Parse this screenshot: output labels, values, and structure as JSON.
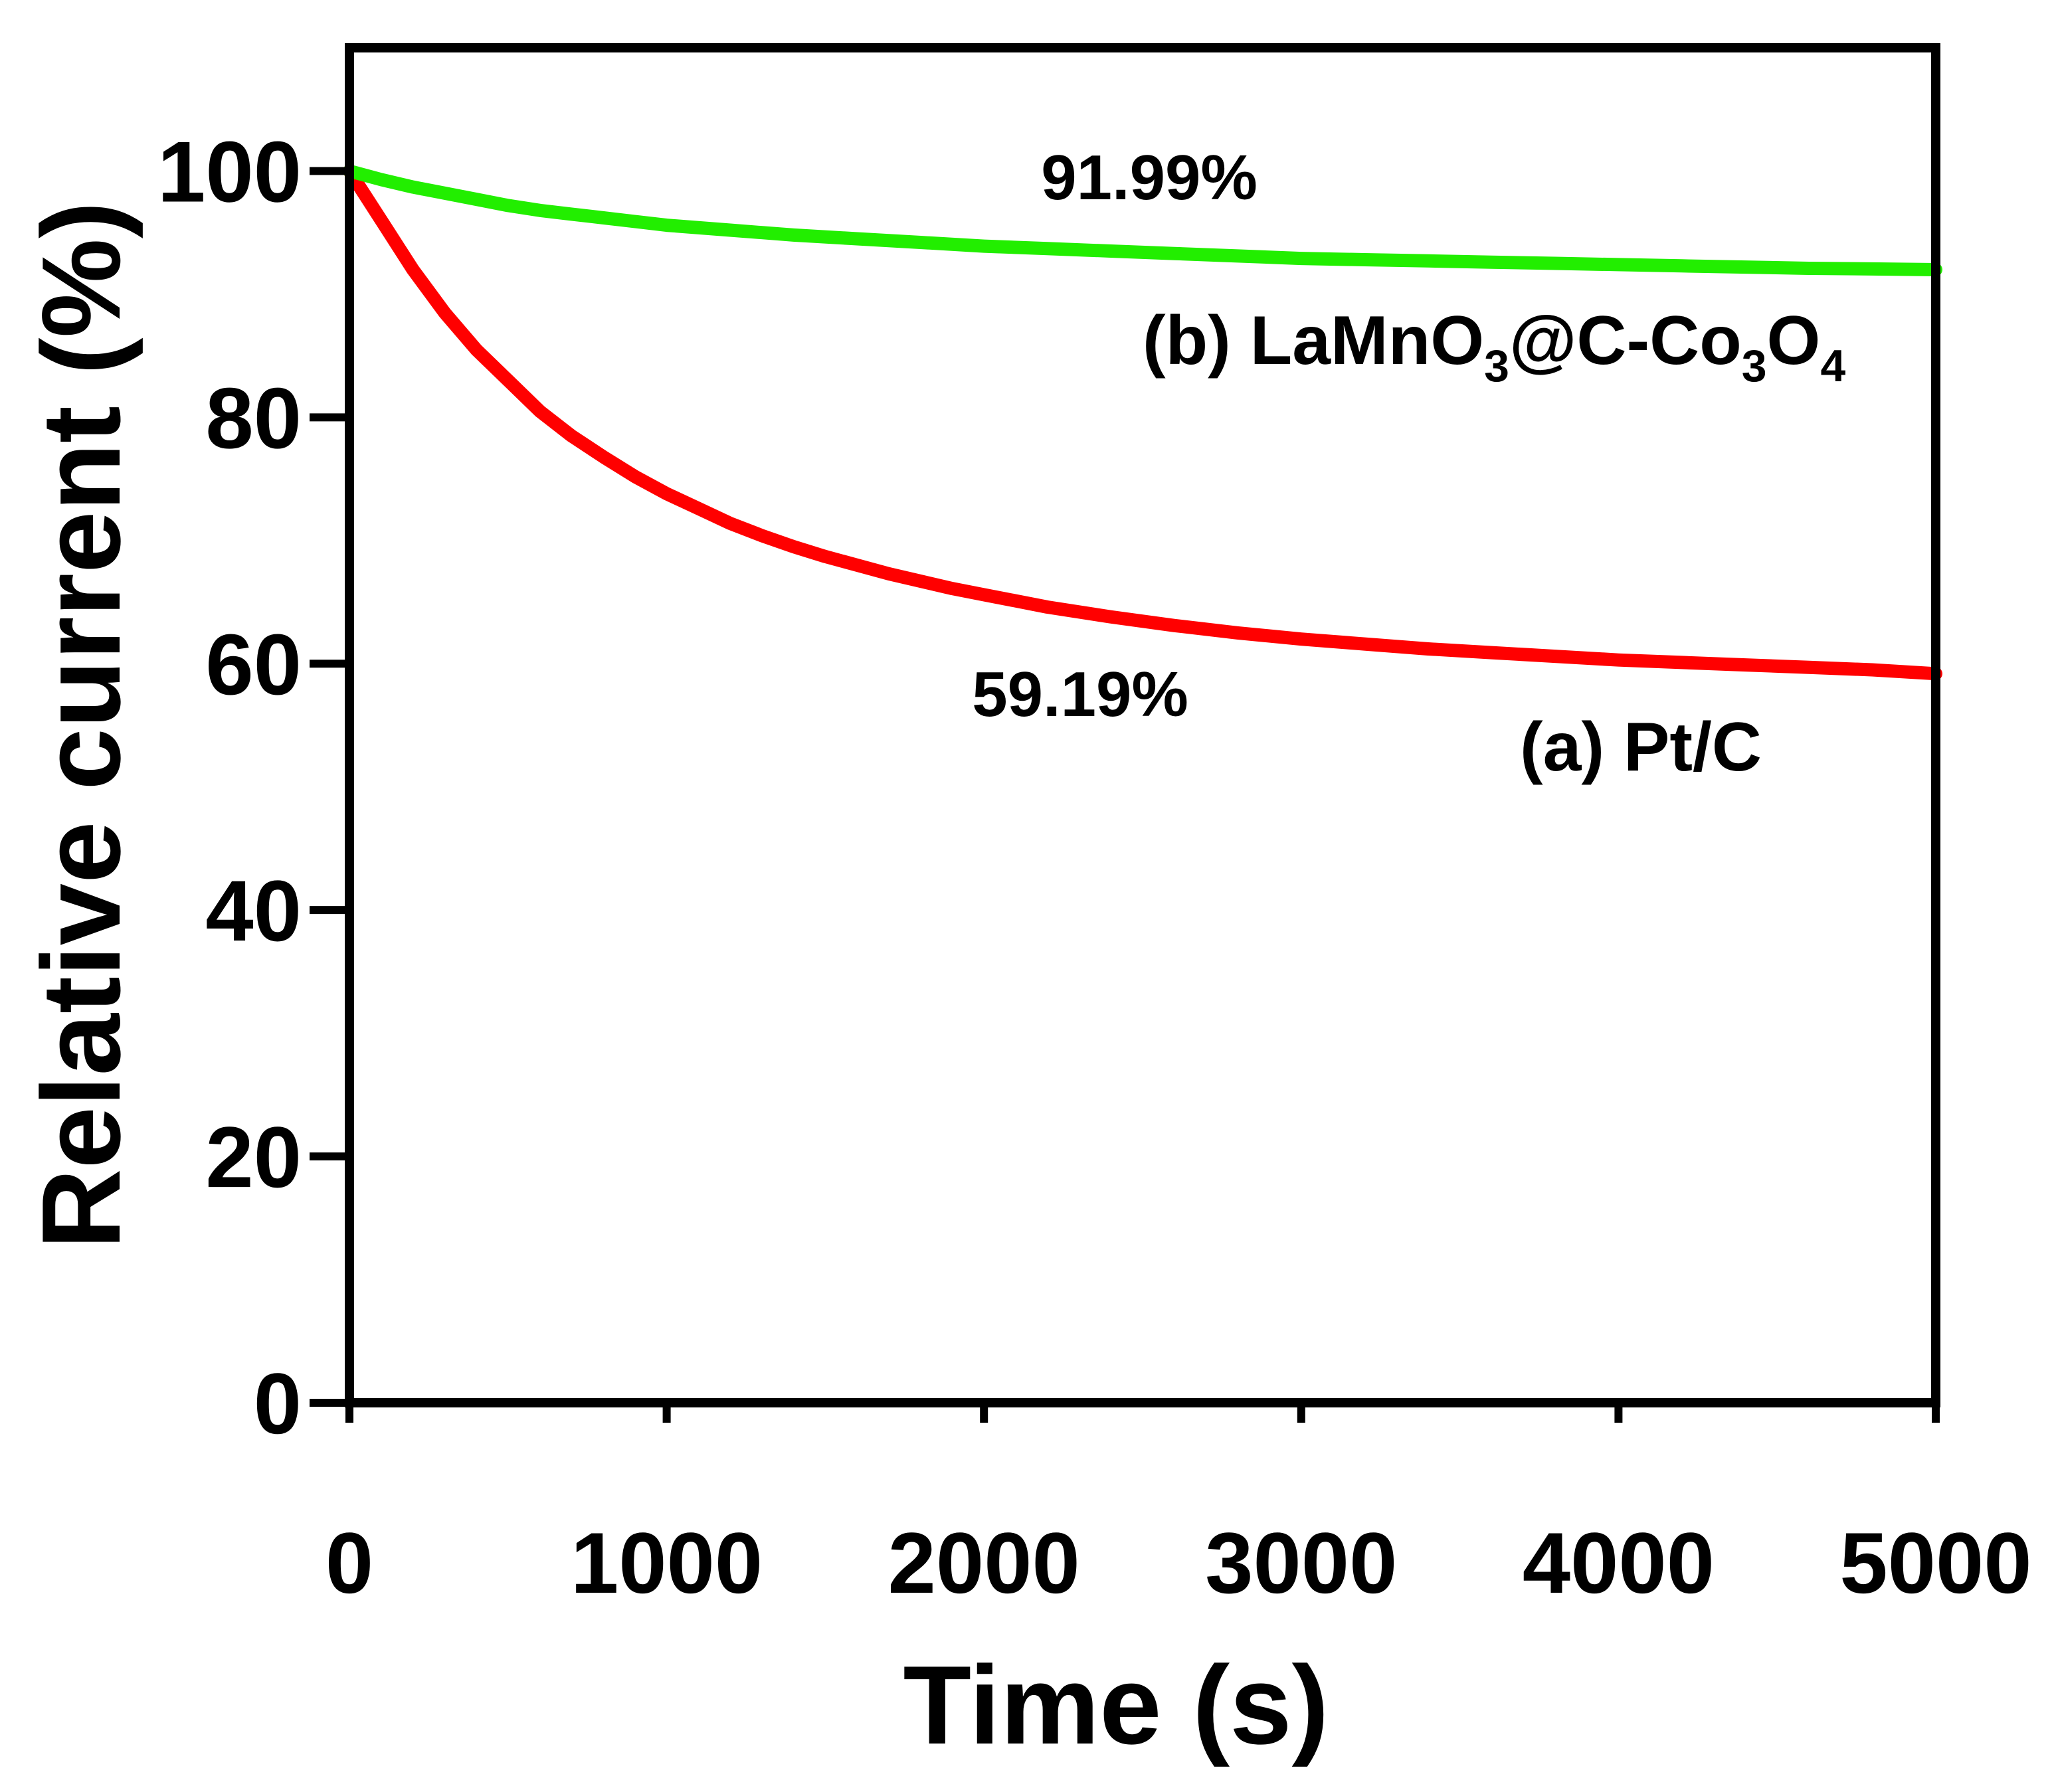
{
  "chart_data": {
    "type": "line",
    "title": "",
    "xlabel": "Time (s)",
    "ylabel": "Relative current (%)",
    "xlim": [
      0,
      5000
    ],
    "ylim": [
      0,
      110
    ],
    "xticks": [
      0,
      1000,
      2000,
      3000,
      4000,
      5000
    ],
    "yticks": [
      0,
      20,
      40,
      60,
      80,
      100
    ],
    "xtick_labels": [
      "0",
      "1000",
      "2000",
      "3000",
      "4000",
      "5000"
    ],
    "ytick_labels": [
      "0",
      "20",
      "40",
      "60",
      "80",
      100
    ],
    "grid": false,
    "series": [
      {
        "name": "(a) Pt/C",
        "label_prefix": "(a) ",
        "label_main": "Pt/C",
        "color": "#ff0000",
        "x": [
          0,
          100,
          200,
          300,
          400,
          500,
          600,
          700,
          800,
          900,
          1000,
          1100,
          1200,
          1300,
          1400,
          1500,
          1600,
          1700,
          1800,
          1900,
          2000,
          2200,
          2400,
          2600,
          2800,
          3000,
          3200,
          3400,
          3600,
          3800,
          4000,
          4200,
          4400,
          4600,
          4800,
          5000
        ],
        "y": [
          100,
          96,
          92,
          88.5,
          85.5,
          83,
          80.5,
          78.5,
          76.8,
          75.2,
          73.8,
          72.6,
          71.4,
          70.4,
          69.5,
          68.7,
          68,
          67.3,
          66.7,
          66.1,
          65.6,
          64.6,
          63.8,
          63.1,
          62.5,
          62,
          61.6,
          61.2,
          60.9,
          60.6,
          60.3,
          60.1,
          59.9,
          59.7,
          59.5,
          59.19
        ]
      },
      {
        "name": "(b) LaMnO3@C-Co3O4",
        "label_prefix": "(b) ",
        "label_parts": [
          "LaMnO",
          "3",
          "@C-Co",
          "3",
          "O",
          "4"
        ],
        "color": "#22ee00",
        "x": [
          0,
          100,
          200,
          300,
          400,
          500,
          600,
          700,
          800,
          900,
          1000,
          1200,
          1400,
          1600,
          1800,
          2000,
          2200,
          2400,
          2600,
          2800,
          3000,
          3200,
          3400,
          3600,
          3800,
          4000,
          4200,
          4400,
          4600,
          4800,
          5000
        ],
        "y": [
          100,
          99.3,
          98.7,
          98.2,
          97.7,
          97.2,
          96.8,
          96.5,
          96.2,
          95.9,
          95.6,
          95.2,
          94.8,
          94.5,
          94.2,
          93.9,
          93.7,
          93.5,
          93.3,
          93.1,
          92.9,
          92.8,
          92.7,
          92.6,
          92.5,
          92.4,
          92.3,
          92.2,
          92.1,
          92.05,
          91.99
        ]
      }
    ],
    "annotations": [
      {
        "text": "91.99%",
        "series": "(b) LaMnO3@C-Co3O4"
      },
      {
        "text": "59.19%",
        "series": "(a) Pt/C"
      }
    ]
  }
}
